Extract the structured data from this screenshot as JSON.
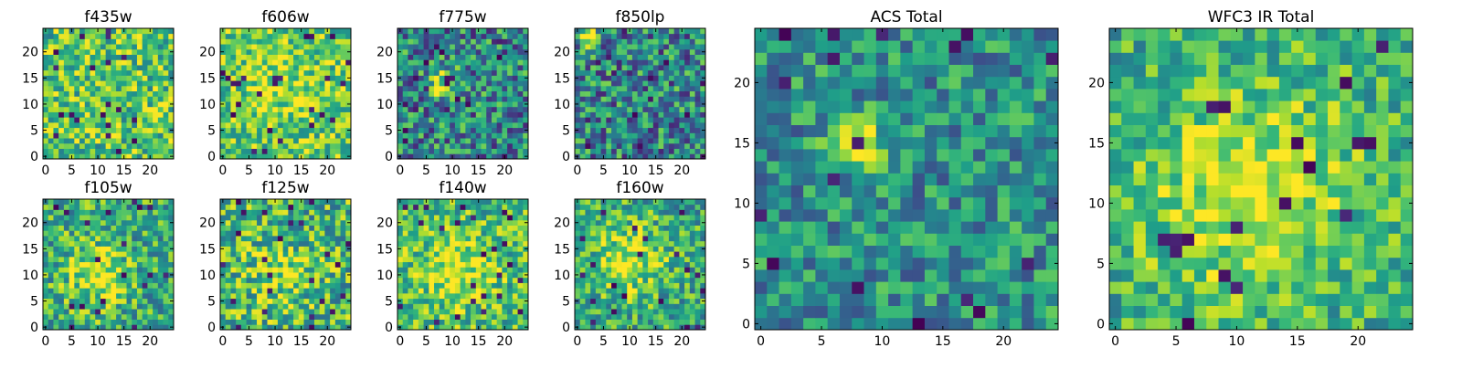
{
  "chart_data": [
    {
      "type": "heatmap",
      "title": "f435w",
      "xlabel": "",
      "ylabel": "",
      "grid_size": [
        25,
        25
      ],
      "xlim": [
        -0.5,
        24.5
      ],
      "ylim": [
        -0.5,
        24.5
      ],
      "xticks": [
        0,
        5,
        10,
        15,
        20
      ],
      "yticks": [
        0,
        5,
        10,
        15,
        20
      ],
      "colormap": "viridis",
      "values": "pixel noise map (no printed values)"
    },
    {
      "type": "heatmap",
      "title": "f606w",
      "xlabel": "",
      "ylabel": "",
      "grid_size": [
        25,
        25
      ],
      "xlim": [
        -0.5,
        24.5
      ],
      "ylim": [
        -0.5,
        24.5
      ],
      "xticks": [
        0,
        5,
        10,
        15,
        20
      ],
      "yticks": [
        0,
        5,
        10,
        15,
        20
      ],
      "colormap": "viridis",
      "values": "pixel noise map (no printed values)"
    },
    {
      "type": "heatmap",
      "title": "f775w",
      "xlabel": "",
      "ylabel": "",
      "grid_size": [
        25,
        25
      ],
      "xlim": [
        -0.5,
        24.5
      ],
      "ylim": [
        -0.5,
        24.5
      ],
      "xticks": [
        0,
        5,
        10,
        15,
        20
      ],
      "yticks": [
        0,
        5,
        10,
        15,
        20
      ],
      "colormap": "viridis",
      "values": "pixel noise map (no printed values)"
    },
    {
      "type": "heatmap",
      "title": "f850lp",
      "xlabel": "",
      "ylabel": "",
      "grid_size": [
        25,
        25
      ],
      "xlim": [
        -0.5,
        24.5
      ],
      "ylim": [
        -0.5,
        24.5
      ],
      "xticks": [
        0,
        5,
        10,
        15,
        20
      ],
      "yticks": [
        0,
        5,
        10,
        15,
        20
      ],
      "colormap": "viridis",
      "values": "pixel noise map (no printed values)"
    },
    {
      "type": "heatmap",
      "title": "f105w",
      "xlabel": "",
      "ylabel": "",
      "grid_size": [
        25,
        25
      ],
      "xlim": [
        -0.5,
        24.5
      ],
      "ylim": [
        -0.5,
        24.5
      ],
      "xticks": [
        0,
        5,
        10,
        15,
        20
      ],
      "yticks": [
        0,
        5,
        10,
        15,
        20
      ],
      "colormap": "viridis",
      "values": "pixel noise map (no printed values)"
    },
    {
      "type": "heatmap",
      "title": "f125w",
      "xlabel": "",
      "ylabel": "",
      "grid_size": [
        25,
        25
      ],
      "xlim": [
        -0.5,
        24.5
      ],
      "ylim": [
        -0.5,
        24.5
      ],
      "xticks": [
        0,
        5,
        10,
        15,
        20
      ],
      "yticks": [
        0,
        5,
        10,
        15,
        20
      ],
      "colormap": "viridis",
      "values": "pixel noise map (no printed values)"
    },
    {
      "type": "heatmap",
      "title": "f140w",
      "xlabel": "",
      "ylabel": "",
      "grid_size": [
        25,
        25
      ],
      "xlim": [
        -0.5,
        24.5
      ],
      "ylim": [
        -0.5,
        24.5
      ],
      "xticks": [
        0,
        5,
        10,
        15,
        20
      ],
      "yticks": [
        0,
        5,
        10,
        15,
        20
      ],
      "colormap": "viridis",
      "values": "pixel noise map (no printed values)"
    },
    {
      "type": "heatmap",
      "title": "f160w",
      "xlabel": "",
      "ylabel": "",
      "grid_size": [
        25,
        25
      ],
      "xlim": [
        -0.5,
        24.5
      ],
      "ylim": [
        -0.5,
        24.5
      ],
      "xticks": [
        0,
        5,
        10,
        15,
        20
      ],
      "yticks": [
        0,
        5,
        10,
        15,
        20
      ],
      "colormap": "viridis",
      "values": "pixel noise map (no printed values)"
    },
    {
      "type": "heatmap",
      "title": "ACS Total",
      "xlabel": "",
      "ylabel": "",
      "grid_size": [
        25,
        25
      ],
      "xlim": [
        -0.5,
        24.5
      ],
      "ylim": [
        -0.5,
        24.5
      ],
      "xticks": [
        0,
        5,
        10,
        15,
        20
      ],
      "yticks": [
        0,
        5,
        10,
        15,
        20
      ],
      "colormap": "viridis",
      "values": "pixel noise map (no printed values)"
    },
    {
      "type": "heatmap",
      "title": "WFC3 IR Total",
      "xlabel": "",
      "ylabel": "",
      "grid_size": [
        25,
        25
      ],
      "xlim": [
        -0.5,
        24.5
      ],
      "ylim": [
        -0.5,
        24.5
      ],
      "xticks": [
        0,
        5,
        10,
        15,
        20
      ],
      "yticks": [
        0,
        5,
        10,
        15,
        20
      ],
      "colormap": "viridis",
      "values": "pixel noise map (no printed values)"
    }
  ]
}
